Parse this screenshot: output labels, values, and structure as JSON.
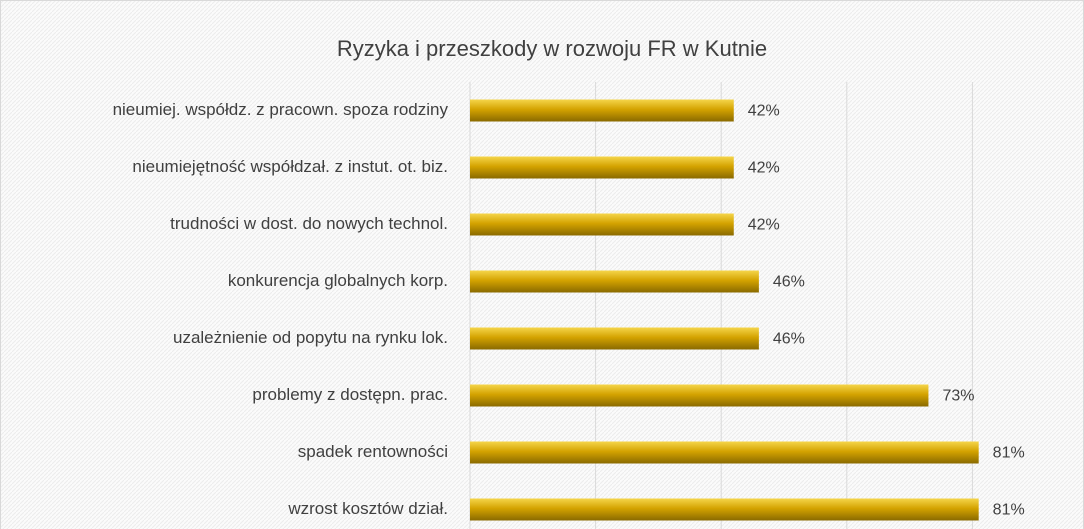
{
  "chart_data": {
    "type": "bar",
    "orientation": "horizontal",
    "title": "Ryzyka i przeszkody w rozwoju FR w Kutnie",
    "categories": [
      "nieumiej. współdz. z pracown. spoza rodziny",
      "nieumiejętność współdzał. z instut. ot. biz.",
      "trudności w dost. do nowych technol.",
      "konkurencja globalnych korp.",
      "uzależnienie od popytu na rynku lok.",
      "problemy z dostępn. prac.",
      "spadek rentowności",
      "wzrost kosztów dział."
    ],
    "values": [
      42,
      42,
      42,
      46,
      46,
      73,
      81,
      81
    ],
    "value_labels": [
      "42%",
      "42%",
      "42%",
      "46%",
      "46%",
      "73%",
      "81%",
      "81%"
    ],
    "color": "#d4a300",
    "xlim": [
      0,
      100
    ],
    "xticks": [
      0,
      20,
      40,
      60,
      80
    ],
    "grid": true
  }
}
